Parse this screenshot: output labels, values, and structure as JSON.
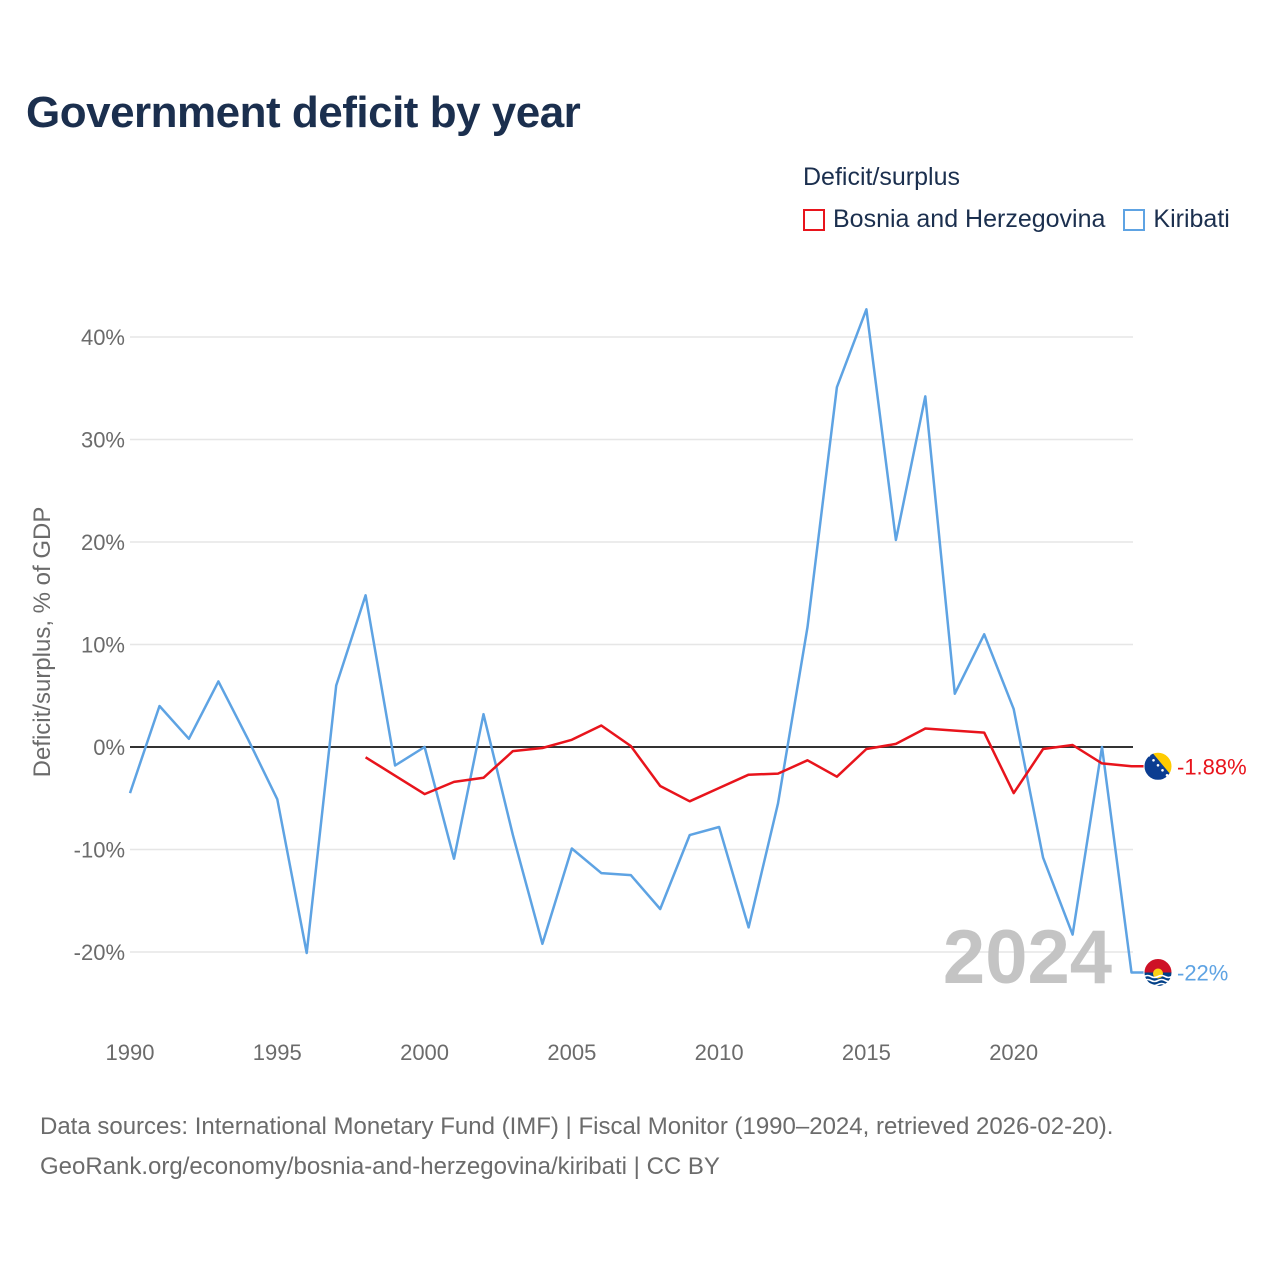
{
  "title": "Government deficit by year",
  "legend": {
    "title": "Deficit/surplus",
    "items": [
      {
        "label": "Bosnia and Herzegovina",
        "color": "#e8141c"
      },
      {
        "label": "Kiribati",
        "color": "#5ea3e3"
      }
    ]
  },
  "source": {
    "line1": "Data sources: International Monetary Fund (IMF) | Fiscal Monitor (1990–2024, retrieved 2026-02-20).",
    "line2": "GeoRank.org/economy/bosnia-and-herzegovina/kiribati | CC BY"
  },
  "chart_data": {
    "type": "line",
    "title": "Government deficit by year",
    "xlabel": "",
    "ylabel": "Deficit/surplus, % of GDP",
    "xlim": [
      1990,
      2024
    ],
    "ylim": [
      -25,
      45
    ],
    "x_ticks": [
      1990,
      1995,
      2000,
      2005,
      2010,
      2015,
      2020
    ],
    "y_ticks": [
      40,
      30,
      20,
      10,
      0,
      -10,
      -20
    ],
    "y_tick_labels": [
      "40%",
      "30%",
      "20%",
      "10%",
      "0%",
      "-10%",
      "-20%"
    ],
    "year_watermark": "2024",
    "series": [
      {
        "name": "Bosnia and Herzegovina",
        "color": "#e8141c",
        "end_label": "-1.88%",
        "x": [
          1998,
          1999,
          2000,
          2001,
          2002,
          2003,
          2004,
          2005,
          2006,
          2007,
          2008,
          2009,
          2010,
          2011,
          2012,
          2013,
          2014,
          2015,
          2016,
          2017,
          2018,
          2019,
          2020,
          2021,
          2022,
          2023,
          2024
        ],
        "values": [
          -1.0,
          -2.8,
          -4.6,
          -3.4,
          -3.0,
          -0.4,
          -0.1,
          0.7,
          2.1,
          0.1,
          -3.8,
          -5.3,
          -4.0,
          -2.7,
          -2.6,
          -1.3,
          -2.9,
          -0.2,
          0.3,
          1.8,
          1.6,
          1.4,
          -4.5,
          -0.2,
          0.2,
          -1.6,
          -1.88
        ]
      },
      {
        "name": "Kiribati",
        "color": "#5ea3e3",
        "end_label": "-22%",
        "x": [
          1990,
          1991,
          1992,
          1993,
          1994,
          1995,
          1996,
          1997,
          1998,
          1999,
          2000,
          2001,
          2002,
          2003,
          2004,
          2005,
          2006,
          2007,
          2008,
          2009,
          2010,
          2011,
          2012,
          2013,
          2014,
          2015,
          2016,
          2017,
          2018,
          2019,
          2020,
          2021,
          2022,
          2023,
          2024
        ],
        "values": [
          -4.5,
          4.0,
          0.8,
          6.4,
          0.8,
          -5.1,
          -20.1,
          6.0,
          14.8,
          -1.8,
          0.0,
          -10.9,
          3.2,
          -8.6,
          -19.2,
          -9.9,
          -12.3,
          -12.5,
          -15.8,
          -8.6,
          -7.8,
          -17.6,
          -5.5,
          11.7,
          35.1,
          42.7,
          20.2,
          34.2,
          5.2,
          11.0,
          3.7,
          -10.8,
          -18.3,
          0.0,
          -22.0
        ]
      }
    ]
  }
}
